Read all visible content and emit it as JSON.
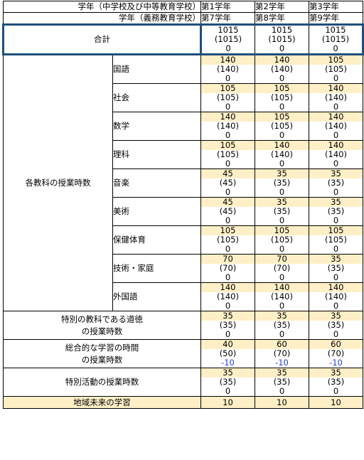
{
  "header": {
    "row1_label": "学年（中学校及び中等教育学校）",
    "row2_label": "学年（義務教育学校）",
    "row1_grades": [
      "第1学年",
      "第2学年",
      "第3学年"
    ],
    "row2_grades": [
      "第7学年",
      "第8学年",
      "第9学年"
    ]
  },
  "total": {
    "label": "合計",
    "values": [
      {
        "top": "1015",
        "mid": "(1015)",
        "bot": "0"
      },
      {
        "top": "1015",
        "mid": "(1015)",
        "bot": "0"
      },
      {
        "top": "1015",
        "mid": "(1015)",
        "bot": "0"
      }
    ]
  },
  "subjects_group": {
    "label": "各教科の授業時数",
    "subjects": [
      {
        "name": "国語",
        "values": [
          {
            "top": "140",
            "mid": "(140)",
            "bot": "0"
          },
          {
            "top": "140",
            "mid": "(140)",
            "bot": "0"
          },
          {
            "top": "105",
            "mid": "(105)",
            "bot": "0"
          }
        ]
      },
      {
        "name": "社会",
        "values": [
          {
            "top": "105",
            "mid": "(105)",
            "bot": "0"
          },
          {
            "top": "105",
            "mid": "(105)",
            "bot": "0"
          },
          {
            "top": "140",
            "mid": "(140)",
            "bot": "0"
          }
        ]
      },
      {
        "name": "数学",
        "values": [
          {
            "top": "140",
            "mid": "(140)",
            "bot": "0"
          },
          {
            "top": "105",
            "mid": "(105)",
            "bot": "0"
          },
          {
            "top": "140",
            "mid": "(140)",
            "bot": "0"
          }
        ]
      },
      {
        "name": "理科",
        "values": [
          {
            "top": "105",
            "mid": "(105)",
            "bot": "0"
          },
          {
            "top": "140",
            "mid": "(140)",
            "bot": "0"
          },
          {
            "top": "140",
            "mid": "(140)",
            "bot": "0"
          }
        ]
      },
      {
        "name": "音楽",
        "values": [
          {
            "top": "45",
            "mid": "(45)",
            "bot": "0"
          },
          {
            "top": "35",
            "mid": "(35)",
            "bot": "0"
          },
          {
            "top": "35",
            "mid": "(35)",
            "bot": "0"
          }
        ]
      },
      {
        "name": "美術",
        "values": [
          {
            "top": "45",
            "mid": "(45)",
            "bot": "0"
          },
          {
            "top": "35",
            "mid": "(35)",
            "bot": "0"
          },
          {
            "top": "35",
            "mid": "(35)",
            "bot": "0"
          }
        ]
      },
      {
        "name": "保健体育",
        "values": [
          {
            "top": "105",
            "mid": "(105)",
            "bot": "0"
          },
          {
            "top": "105",
            "mid": "(105)",
            "bot": "0"
          },
          {
            "top": "105",
            "mid": "(105)",
            "bot": "0"
          }
        ]
      },
      {
        "name": "技術・家庭",
        "values": [
          {
            "top": "70",
            "mid": "(70)",
            "bot": "0"
          },
          {
            "top": "70",
            "mid": "(70)",
            "bot": "0"
          },
          {
            "top": "35",
            "mid": "(35)",
            "bot": "0"
          }
        ]
      },
      {
        "name": "外国語",
        "values": [
          {
            "top": "140",
            "mid": "(140)",
            "bot": "0"
          },
          {
            "top": "140",
            "mid": "(140)",
            "bot": "0"
          },
          {
            "top": "140",
            "mid": "(140)",
            "bot": "0"
          }
        ]
      }
    ]
  },
  "moral": {
    "label_line1": "特別の教科である道徳",
    "label_line2": "の授業時数",
    "values": [
      {
        "top": "35",
        "mid": "(35)",
        "bot": "0"
      },
      {
        "top": "35",
        "mid": "(35)",
        "bot": "0"
      },
      {
        "top": "35",
        "mid": "(35)",
        "bot": "0"
      }
    ]
  },
  "integrated": {
    "label_line1": "総合的な学習の時間",
    "label_line2": "の授業時数",
    "values": [
      {
        "top": "40",
        "mid": "(50)",
        "bot": "-10"
      },
      {
        "top": "60",
        "mid": "(70)",
        "bot": "-10"
      },
      {
        "top": "60",
        "mid": "(70)",
        "bot": "-10"
      }
    ]
  },
  "special": {
    "label": "特別活動の授業時数",
    "values": [
      {
        "top": "35",
        "mid": "(35)",
        "bot": "0"
      },
      {
        "top": "35",
        "mid": "(35)",
        "bot": "0"
      },
      {
        "top": "35",
        "mid": "(35)",
        "bot": "0"
      }
    ]
  },
  "chiiki": {
    "label": "地域未来の学習",
    "values": [
      "10",
      "10",
      "10"
    ]
  },
  "colors": {
    "highlight": "#ffefc6",
    "negative": "#1f3fd8",
    "total_border": "#1f4f7a"
  }
}
